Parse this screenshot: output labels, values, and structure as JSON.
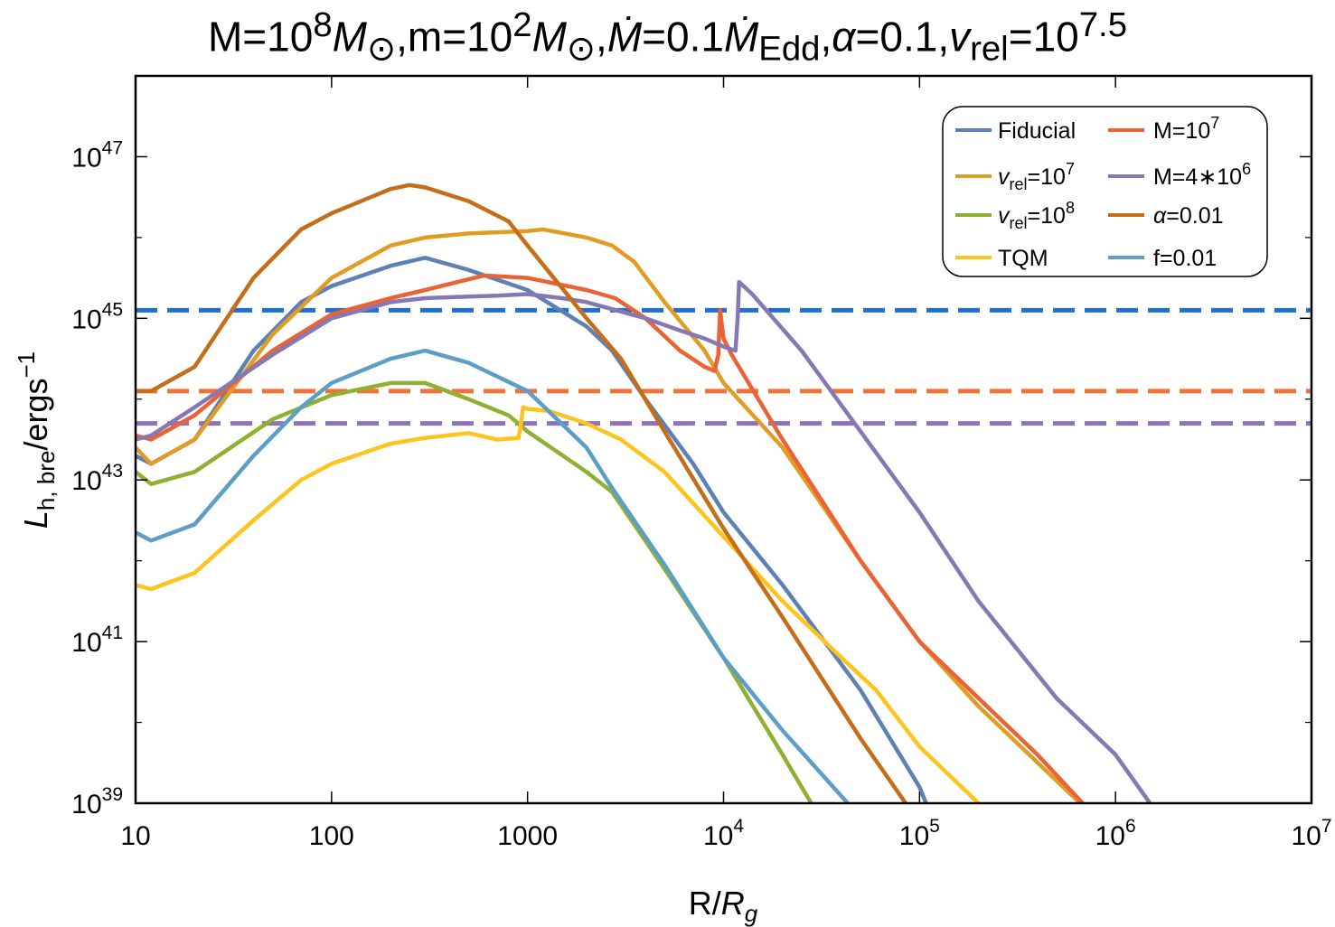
{
  "chart_data": {
    "type": "line",
    "title": {
      "text": "M=10^8 M⊙,m=10^2 M⊙,Ṁ=0.1Ṁ_Edd,α=0.1,v_rel=10^7.5",
      "M_label": "M=10",
      "M_exp": "8",
      "M_sun": "M",
      "sun_sym": "⊙",
      "m_label": "m=10",
      "m_exp": "2",
      "mdot_sym": "Ṁ",
      "mdot_value": "=0.1",
      "edd_sub": "Edd",
      "alpha_label": "α",
      "alpha_value": "=0.1",
      "v_label": "v",
      "rel_sub": "rel",
      "v_value": "=10",
      "v_exp": "7.5"
    },
    "xlabel": "R/R_g",
    "ylabel": "L_h,bre/ergs^-1",
    "xlabel_parts": {
      "pre": "R/",
      "sym": "R",
      "sub": "g"
    },
    "ylabel_parts": {
      "sym": "L",
      "sub": "h, bre",
      "mid": "/ergs",
      "sup": "−1"
    },
    "xscale": "log",
    "yscale": "log",
    "xlim": [
      10,
      10000000
    ],
    "ylim_log10": [
      39,
      48
    ],
    "x_ticks": [
      {
        "value": 10,
        "base": "10",
        "exp": ""
      },
      {
        "value": 100,
        "base": "100",
        "exp": ""
      },
      {
        "value": 1000,
        "base": "1000",
        "exp": ""
      },
      {
        "value": 10000,
        "base": "10",
        "exp": "4"
      },
      {
        "value": 100000,
        "base": "10",
        "exp": "5"
      },
      {
        "value": 1000000,
        "base": "10",
        "exp": "6"
      },
      {
        "value": 10000000,
        "base": "10",
        "exp": "7"
      }
    ],
    "y_ticks": [
      {
        "log10": 39,
        "base": "10",
        "exp": "39"
      },
      {
        "log10": 41,
        "base": "10",
        "exp": "41"
      },
      {
        "log10": 43,
        "base": "10",
        "exp": "43"
      },
      {
        "log10": 45,
        "base": "10",
        "exp": "45"
      },
      {
        "log10": 47,
        "base": "10",
        "exp": "47"
      }
    ],
    "legend_position": "top-right",
    "series": [
      {
        "name": "Fiducial",
        "label": "Fiducial",
        "color": "#5E81B5",
        "x": [
          10,
          12,
          20,
          40,
          70,
          100,
          200,
          300,
          500,
          1000,
          2000,
          2700,
          4000,
          7000,
          10000,
          20000,
          50000,
          100000,
          108000
        ],
        "log10_y": [
          43.3,
          43.2,
          43.5,
          44.6,
          45.2,
          45.4,
          45.65,
          45.75,
          45.6,
          45.35,
          44.9,
          44.6,
          44.0,
          43.2,
          42.6,
          41.7,
          40.4,
          39.2,
          39.0
        ]
      },
      {
        "name": "v_rel=10^7",
        "label_sym": "v",
        "label_sub": "rel",
        "label_val": "=10",
        "label_exp": "7",
        "color": "#E19C24",
        "x": [
          10,
          12,
          20,
          50,
          100,
          200,
          300,
          500,
          800,
          1000,
          1200,
          2000,
          2700,
          3500,
          5000,
          8000,
          10000,
          20000,
          50000,
          100000,
          200000,
          660000
        ],
        "log10_y": [
          43.4,
          43.2,
          43.5,
          44.8,
          45.5,
          45.9,
          46.0,
          46.05,
          46.07,
          46.08,
          46.1,
          46.0,
          45.9,
          45.7,
          45.2,
          44.6,
          44.2,
          43.4,
          42.0,
          41.0,
          40.2,
          39.0
        ]
      },
      {
        "name": "v_rel=10^8",
        "label_sym": "v",
        "label_sub": "rel",
        "label_val": "=10",
        "label_exp": "8",
        "color": "#8FB032",
        "x": [
          10,
          12,
          20,
          50,
          100,
          200,
          300,
          500,
          800,
          1000,
          2000,
          2700,
          5000,
          10000,
          20000,
          28000
        ],
        "log10_y": [
          43.1,
          42.95,
          43.1,
          43.75,
          44.05,
          44.2,
          44.2,
          44.0,
          43.8,
          43.6,
          43.1,
          42.85,
          41.9,
          40.8,
          39.6,
          39.0
        ]
      },
      {
        "name": "TQM",
        "label": "TQM",
        "color": "#FFC31E",
        "x": [
          10,
          12,
          20,
          40,
          70,
          100,
          200,
          300,
          500,
          700,
          900,
          920,
          950,
          1000,
          1300,
          2000,
          3000,
          5000,
          10000,
          20000,
          40000,
          60000,
          100000,
          200000
        ],
        "log10_y": [
          41.7,
          41.65,
          41.85,
          42.5,
          43.0,
          43.2,
          43.45,
          43.52,
          43.58,
          43.5,
          43.52,
          43.65,
          43.9,
          43.88,
          43.85,
          43.7,
          43.5,
          43.1,
          42.3,
          41.5,
          40.8,
          40.4,
          39.7,
          39.0
        ]
      },
      {
        "name": "M=10^7",
        "label_val": "M=10",
        "label_exp": "7",
        "color": "#EB6235",
        "x": [
          10,
          12,
          20,
          50,
          100,
          200,
          300,
          600,
          1000,
          2000,
          2800,
          4000,
          6000,
          8000,
          9000,
          9400,
          9600,
          10000,
          11000,
          20000,
          50000,
          100000,
          200000,
          400000,
          680000
        ],
        "log10_y": [
          43.55,
          43.5,
          43.8,
          44.6,
          45.05,
          45.25,
          45.35,
          45.53,
          45.5,
          45.35,
          45.25,
          45.0,
          44.6,
          44.4,
          44.35,
          44.55,
          45.1,
          44.75,
          44.55,
          43.5,
          42.0,
          41.0,
          40.3,
          39.6,
          39.0
        ]
      },
      {
        "name": "M=4*10^6",
        "label_val": "M=4∗10",
        "label_exp": "6",
        "color": "#8778B3",
        "x": [
          10,
          12,
          20,
          50,
          100,
          200,
          300,
          500,
          700,
          1000,
          1500,
          2000,
          4000,
          6000,
          8000,
          10000,
          11500,
          11800,
          12000,
          14000,
          25000,
          50000,
          100000,
          200000,
          500000,
          1000000,
          1500000
        ],
        "log10_y": [
          43.5,
          43.55,
          43.9,
          44.55,
          45.0,
          45.2,
          45.25,
          45.27,
          45.28,
          45.3,
          45.25,
          45.2,
          45.0,
          44.85,
          44.75,
          44.65,
          44.6,
          45.0,
          45.45,
          45.3,
          44.6,
          43.6,
          42.6,
          41.5,
          40.3,
          39.6,
          39.0
        ]
      },
      {
        "name": "alpha=0.01",
        "label_sym": "α",
        "label_val": "=0.01",
        "color": "#C56E1A",
        "x": [
          10,
          12,
          20,
          40,
          70,
          100,
          200,
          250,
          300,
          500,
          800,
          1000,
          2000,
          3000,
          5000,
          10000,
          20000,
          50000,
          85000
        ],
        "log10_y": [
          44.1,
          44.1,
          44.4,
          45.5,
          46.1,
          46.3,
          46.6,
          46.65,
          46.62,
          46.45,
          46.2,
          45.9,
          45.0,
          44.5,
          43.6,
          42.4,
          41.3,
          39.8,
          39.0
        ]
      },
      {
        "name": "f=0.01",
        "label": "f=0.01",
        "color": "#5D9EC7",
        "x": [
          10,
          12,
          20,
          40,
          70,
          100,
          200,
          300,
          500,
          1000,
          2000,
          2700,
          5000,
          10000,
          20000,
          43000
        ],
        "log10_y": [
          42.35,
          42.25,
          42.45,
          43.3,
          43.9,
          44.2,
          44.5,
          44.6,
          44.45,
          44.1,
          43.4,
          42.9,
          41.95,
          40.8,
          39.9,
          39.0
        ]
      }
    ],
    "reference_lines": [
      {
        "name": "Fiducial threshold",
        "log10_y": 45.1,
        "color": "#1F6FD4"
      },
      {
        "name": "M=10^7 threshold",
        "log10_y": 44.1,
        "color": "#F0733A"
      },
      {
        "name": "M=4*10^6 threshold",
        "log10_y": 43.7,
        "color": "#8F72B8"
      }
    ]
  }
}
